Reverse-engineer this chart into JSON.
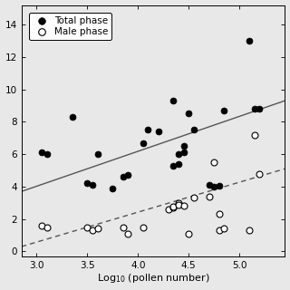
{
  "xlabel": "Log$_{10}$ (pollen number)",
  "xlim": [
    2.85,
    5.45
  ],
  "ylim": [
    -0.3,
    15.2
  ],
  "xticks": [
    3.0,
    3.5,
    4.0,
    4.5,
    5.0
  ],
  "yticks": [
    0.0,
    2.0,
    4.0,
    6.0,
    8.0,
    10.0,
    12.0,
    14.0
  ],
  "total_phase_x": [
    3.05,
    3.1,
    3.35,
    3.5,
    3.55,
    3.6,
    3.75,
    3.85,
    3.9,
    4.05,
    4.1,
    4.2,
    4.35,
    4.35,
    4.4,
    4.4,
    4.45,
    4.45,
    4.5,
    4.55,
    4.7,
    4.75,
    4.8,
    4.85,
    5.1,
    5.15,
    5.2
  ],
  "total_phase_y": [
    6.1,
    6.0,
    8.3,
    4.2,
    4.1,
    6.0,
    3.9,
    4.6,
    4.7,
    6.7,
    7.5,
    7.4,
    9.3,
    5.3,
    5.4,
    6.0,
    6.1,
    6.5,
    8.5,
    7.5,
    4.1,
    4.0,
    4.05,
    8.7,
    13.0,
    8.8,
    8.8
  ],
  "male_phase_x": [
    3.05,
    3.1,
    3.5,
    3.55,
    3.6,
    3.85,
    3.9,
    4.05,
    4.3,
    4.35,
    4.35,
    4.4,
    4.4,
    4.45,
    4.5,
    4.55,
    4.7,
    4.75,
    4.8,
    4.8,
    4.85,
    5.1,
    5.15,
    5.2
  ],
  "male_phase_y": [
    1.6,
    1.5,
    1.5,
    1.3,
    1.4,
    1.5,
    1.1,
    1.5,
    2.6,
    2.7,
    2.75,
    3.0,
    2.85,
    2.8,
    1.1,
    3.3,
    3.4,
    5.5,
    2.3,
    1.3,
    1.4,
    1.3,
    7.2,
    4.8
  ],
  "total_line_x": [
    2.85,
    5.45
  ],
  "total_line_y": [
    3.7,
    9.3
  ],
  "male_line_x": [
    2.85,
    5.45
  ],
  "male_line_y": [
    0.3,
    5.1
  ],
  "bg_color": "#e8e8e8",
  "plot_bg": "#e8e8e8",
  "line_color": "#555555",
  "marker_size": 5
}
